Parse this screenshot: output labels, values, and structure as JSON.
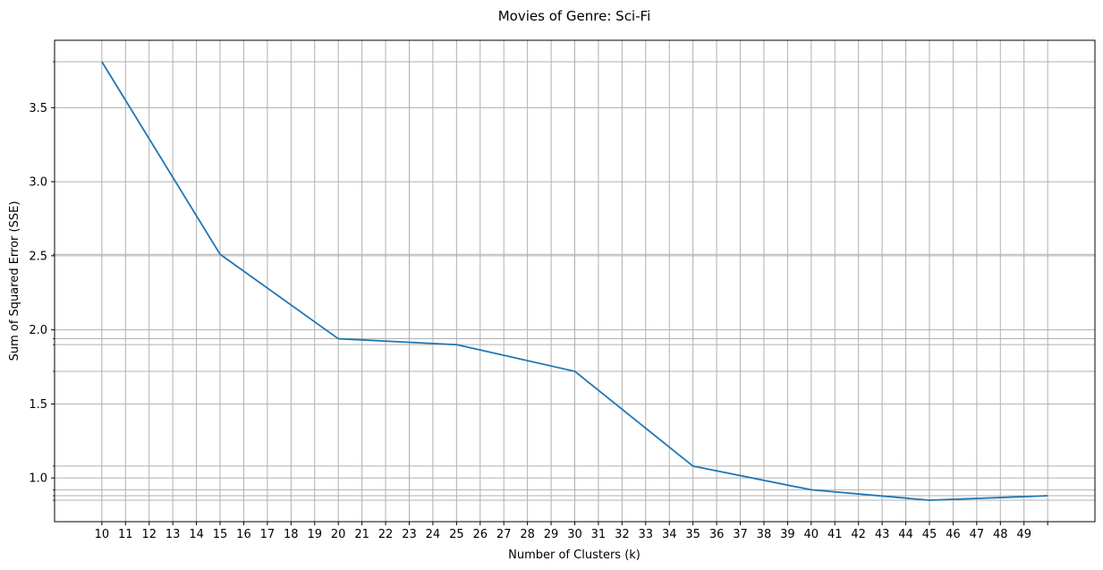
{
  "chart_data": {
    "type": "line",
    "title": "Movies of Genre: Sci-Fi",
    "xlabel": "Number of Clusters (k)",
    "ylabel": "Sum of Squared Error (SSE)",
    "x": [
      10,
      15,
      20,
      25,
      30,
      35,
      40,
      45,
      50
    ],
    "series": [
      {
        "values": [
          3.81,
          2.51,
          1.94,
          1.9,
          1.72,
          1.08,
          0.92,
          0.85,
          0.88
        ]
      }
    ],
    "xticks": [
      10,
      11,
      12,
      13,
      14,
      15,
      16,
      17,
      18,
      19,
      20,
      21,
      22,
      23,
      24,
      25,
      26,
      27,
      28,
      29,
      30,
      31,
      32,
      33,
      34,
      35,
      36,
      37,
      38,
      39,
      40,
      41,
      42,
      43,
      44,
      45,
      46,
      47,
      48,
      49
    ],
    "xticks_extra_unlabeled": [
      50
    ],
    "yticks": [
      1.0,
      1.5,
      2.0,
      2.5,
      3.0,
      3.5
    ],
    "yticks_minor": [
      3.81,
      2.51,
      1.94,
      1.9,
      1.72,
      1.08,
      0.92,
      0.88,
      0.85
    ],
    "xlim": [
      8,
      52
    ],
    "ylim": [
      0.705,
      3.955
    ],
    "grid": true,
    "line_color": "#1f77b4",
    "grid_color": "#b0b0b0"
  }
}
